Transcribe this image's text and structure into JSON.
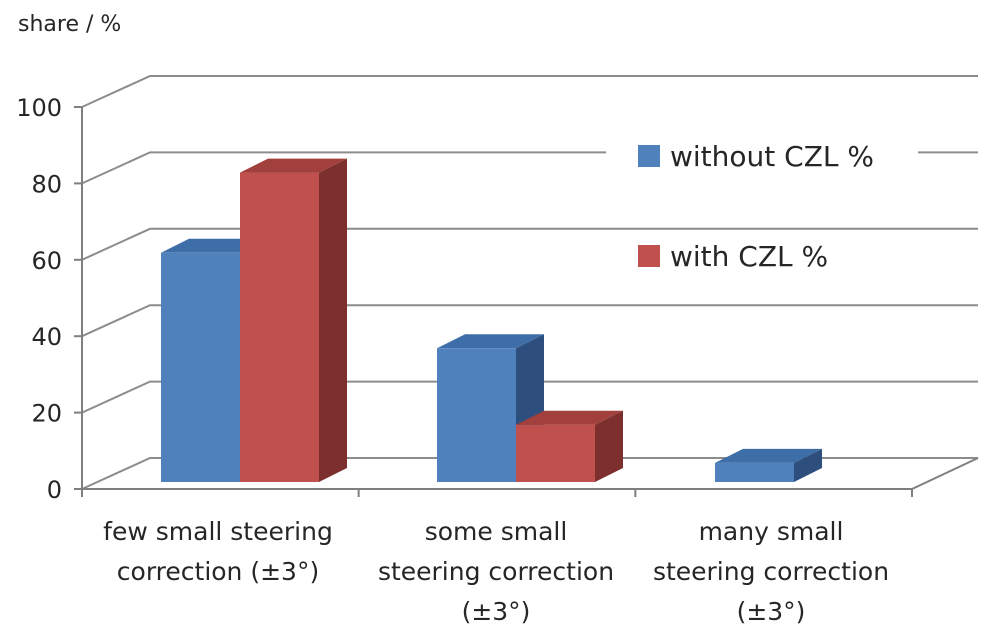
{
  "chart_data": {
    "type": "bar",
    "title": "",
    "ylabel": "share / %",
    "xlabel": "",
    "ylim": [
      0,
      100
    ],
    "yticks": [
      "0",
      "20",
      "40",
      "60",
      "80",
      "100"
    ],
    "grid": true,
    "legend_position": "top-right",
    "categories": [
      [
        "few small steering",
        "correction (±3°)"
      ],
      [
        "some small",
        "steering correction",
        "(±3°)"
      ],
      [
        "many small",
        "steering correction",
        "(±3°)"
      ]
    ],
    "series": [
      {
        "name": "without CZL %",
        "values": [
          60,
          35,
          5
        ],
        "color": "#4f81bd",
        "top": "#3e6ea8",
        "side": "#2e4f7e"
      },
      {
        "name": "with CZL %",
        "values": [
          81,
          15,
          0
        ],
        "color": "#c0504d",
        "top": "#a2403d",
        "side": "#7d2f2d"
      }
    ]
  }
}
